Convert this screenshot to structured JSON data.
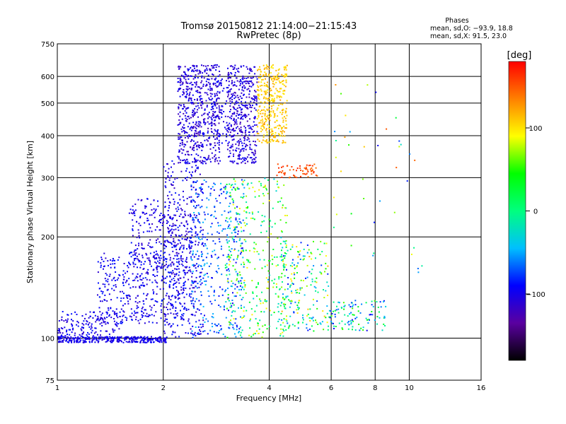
{
  "chart_data": {
    "type": "scatter",
    "title": "Tromsø 20150812 21:14:00−21:15:43",
    "subtitle": "RwPretec (8p)",
    "xlabel": "Frequency [MHz]",
    "ylabel": "Stationary phase Virtual Height [km]",
    "x_scale": "log",
    "y_scale": "log",
    "xlim": [
      1,
      16
    ],
    "ylim": [
      75,
      750
    ],
    "x_ticks": [
      1,
      2,
      4,
      6,
      8,
      10,
      16
    ],
    "x_tick_labels": [
      "1",
      "2",
      "4",
      "6",
      "8",
      "10",
      "16"
    ],
    "y_ticks": [
      75,
      100,
      200,
      300,
      400,
      500,
      600,
      750
    ],
    "y_tick_labels": [
      "75",
      "100",
      "200",
      "300",
      "400",
      "500",
      "600",
      "750"
    ],
    "grid": true,
    "stats": {
      "title": "Phases",
      "line_o": "mean, sd,O: −93.9, 18.8",
      "line_x": "mean, sd,X:  91.5, 23.0"
    },
    "colorbar": {
      "label": "[deg]",
      "range": [
        -180,
        180
      ],
      "ticks": [
        -100,
        0,
        100
      ],
      "tick_labels": [
        "−100",
        "0",
        "100"
      ],
      "colors": [
        "#000000",
        "#5a00a0",
        "#0000ff",
        "#00bfff",
        "#00ff7f",
        "#00ff00",
        "#ffff00",
        "#ff8000",
        "#ff0000"
      ]
    },
    "clusters": [
      {
        "x": [
          1.0,
          2.05
        ],
        "y": [
          97,
          101
        ],
        "phase": [
          -110,
          -90
        ],
        "n": 320
      },
      {
        "x": [
          1.0,
          1.5
        ],
        "y": [
          100,
          120
        ],
        "phase": [
          -115,
          -85
        ],
        "n": 150
      },
      {
        "x": [
          1.3,
          2.3
        ],
        "y": [
          110,
          180
        ],
        "phase": [
          -115,
          -80
        ],
        "n": 420
      },
      {
        "x": [
          1.6,
          2.4
        ],
        "y": [
          160,
          260
        ],
        "phase": [
          -120,
          -85
        ],
        "n": 260
      },
      {
        "x": [
          2.0,
          2.6
        ],
        "y": [
          100,
          340
        ],
        "phase": [
          -120,
          -80
        ],
        "n": 360
      },
      {
        "x": [
          2.4,
          3.4
        ],
        "y": [
          100,
          300
        ],
        "phase": [
          -100,
          -40
        ],
        "n": 360
      },
      {
        "x": [
          3.0,
          4.5
        ],
        "y": [
          100,
          300
        ],
        "phase": [
          -40,
          100
        ],
        "n": 360
      },
      {
        "x": [
          4.3,
          5.9
        ],
        "y": [
          105,
          195
        ],
        "phase": [
          -90,
          120
        ],
        "n": 200
      },
      {
        "x": [
          5.8,
          8.6
        ],
        "y": [
          105,
          130
        ],
        "phase": [
          -100,
          60
        ],
        "n": 110
      },
      {
        "x": [
          2.2,
          2.9
        ],
        "y": [
          330,
          650
        ],
        "phase": [
          -125,
          -90
        ],
        "n": 580
      },
      {
        "x": [
          3.05,
          3.7
        ],
        "y": [
          330,
          650
        ],
        "phase": [
          -125,
          -90
        ],
        "n": 420
      },
      {
        "x": [
          2.75,
          3.05
        ],
        "y": [
          380,
          600
        ],
        "phase": [
          -110,
          -90
        ],
        "n": 60
      },
      {
        "x": [
          3.7,
          4.5
        ],
        "y": [
          380,
          650
        ],
        "phase": [
          95,
          125
        ],
        "n": 340
      },
      {
        "x": [
          4.2,
          5.5
        ],
        "y": [
          300,
          330
        ],
        "phase": [
          140,
          170
        ],
        "n": 60
      },
      {
        "x": [
          6.0,
          11.0
        ],
        "y": [
          150,
          620
        ],
        "phase": [
          -100,
          150
        ],
        "n": 40
      }
    ]
  }
}
